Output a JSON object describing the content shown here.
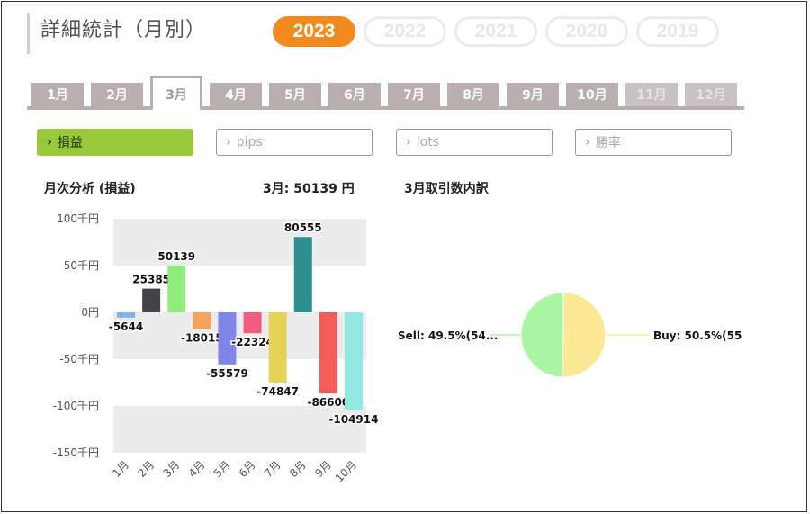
{
  "header": {
    "title": "詳細統計（月別）"
  },
  "years": [
    {
      "label": "2023",
      "active": true
    },
    {
      "label": "2022",
      "active": false
    },
    {
      "label": "2021",
      "active": false
    },
    {
      "label": "2020",
      "active": false
    },
    {
      "label": "2019",
      "active": false
    }
  ],
  "months": [
    {
      "label": "1月",
      "state": "normal"
    },
    {
      "label": "2月",
      "state": "normal"
    },
    {
      "label": "3月",
      "state": "active"
    },
    {
      "label": "4月",
      "state": "normal"
    },
    {
      "label": "5月",
      "state": "normal"
    },
    {
      "label": "6月",
      "state": "normal"
    },
    {
      "label": "7月",
      "state": "normal"
    },
    {
      "label": "8月",
      "state": "normal"
    },
    {
      "label": "9月",
      "state": "normal"
    },
    {
      "label": "10月",
      "state": "normal"
    },
    {
      "label": "11月",
      "state": "disabled"
    },
    {
      "label": "12月",
      "state": "disabled"
    }
  ],
  "metrics": [
    {
      "label": "損益",
      "active": true
    },
    {
      "label": "pips",
      "active": false
    },
    {
      "label": "lots",
      "active": false
    },
    {
      "label": "勝率",
      "active": false
    }
  ],
  "monthly": {
    "title": "月次分析 (損益)",
    "summary": "3月:  50139 円"
  },
  "trade_title": "3月取引数内訳",
  "colors": {
    "accent": "#f28a1e",
    "active_metric": "#97c93b",
    "tab": "#b9afaf"
  },
  "chart_data": [
    {
      "type": "bar",
      "title": "月次分析 (損益)",
      "categories": [
        "1月",
        "2月",
        "3月",
        "4月",
        "5月",
        "6月",
        "7月",
        "8月",
        "9月",
        "10月"
      ],
      "values": [
        -5644,
        25385,
        50139,
        -18015,
        -55579,
        -22324,
        -74847,
        80555,
        -86600,
        -104914
      ],
      "labels": [
        "-5644",
        "25385",
        "50139",
        "-18015",
        "-55579",
        "-22324",
        "-74847",
        "80555",
        "-86600",
        "-104914"
      ],
      "colors": [
        "#7cb5ec",
        "#434348",
        "#90ed7d",
        "#f7a35c",
        "#8085e9",
        "#f15c80",
        "#e4d354",
        "#2b908f",
        "#f45b5b",
        "#91e8e1"
      ],
      "ylim": [
        -150000,
        100000
      ],
      "yticks": [
        100000,
        50000,
        0,
        -50000,
        -100000,
        -150000
      ],
      "ytick_labels": [
        "100千円",
        "50千円",
        "0円",
        "-50千円",
        "-100千円",
        "-150千円"
      ],
      "grid": "alternating bands"
    },
    {
      "type": "pie",
      "title": "3月取引数内訳",
      "slices": [
        {
          "label": "Buy: 50.5%(55",
          "value": 50.5,
          "color": "#fbe993"
        },
        {
          "label": "Sell: 49.5%(54...",
          "value": 49.5,
          "color": "#aaf5a4"
        }
      ]
    }
  ]
}
